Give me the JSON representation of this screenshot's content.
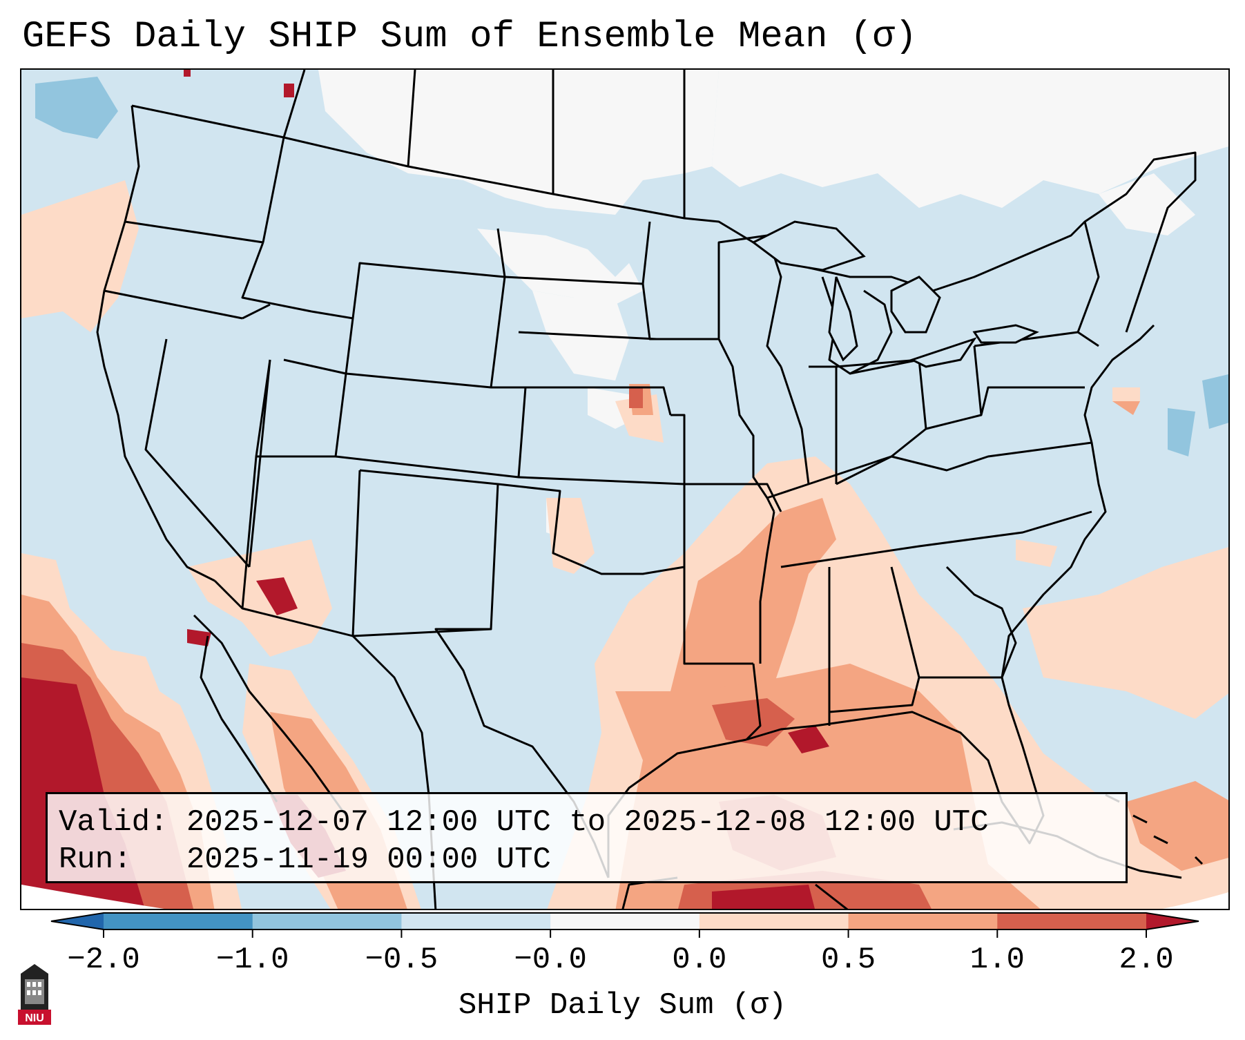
{
  "title": "GEFS Daily SHIP Sum of Ensemble Mean (σ)",
  "info": {
    "valid_line": "Valid: 2025-12-07 12:00 UTC to 2025-12-08 12:00 UTC",
    "run_line": "Run:   2025-11-19 00:00 UTC"
  },
  "colorbar": {
    "label": "SHIP Daily Sum (σ)",
    "tick_labels": [
      "−2.0",
      "−1.0",
      "−0.5",
      "−0.0",
      "0.0",
      "0.5",
      "1.0",
      "2.0"
    ],
    "colors": [
      "#4393c3",
      "#92c5de",
      "#d1e5f0",
      "#f7f7f7",
      "#fddbc7",
      "#f4a582",
      "#d6604d",
      "#b2182b"
    ],
    "extend_low_color": "#2166ac",
    "extend_high_color": "#b2182b",
    "orientation": "horizontal",
    "extend": "both"
  },
  "map": {
    "region": "Contiguous United States",
    "projection": "Lambert Conformal",
    "background_color": "#d1e5f0",
    "outline_color": "#000000"
  },
  "logo": {
    "name": "niu-logo",
    "text": "NIU",
    "color": "#c8102e"
  }
}
